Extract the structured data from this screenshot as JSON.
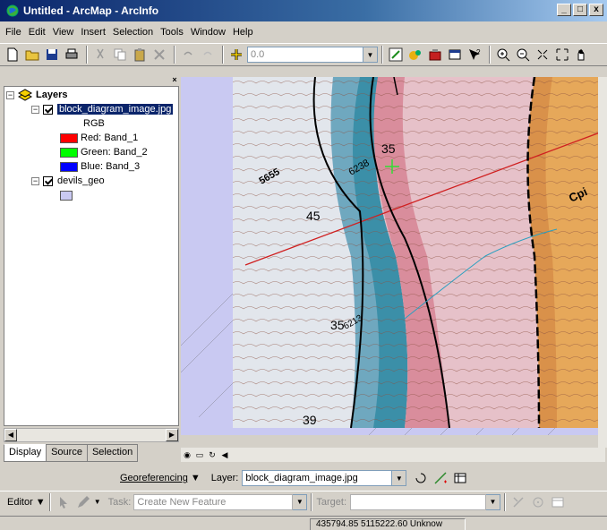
{
  "window": {
    "title": "Untitled - ArcMap - ArcInfo",
    "btn_min": "_",
    "btn_max": "□",
    "btn_close": "x"
  },
  "menu": [
    "File",
    "Edit",
    "View",
    "Insert",
    "Selection",
    "Tools",
    "Window",
    "Help"
  ],
  "toolbar": {
    "scale_value": "0.0"
  },
  "toc": {
    "root_label": "Layers",
    "layers": [
      {
        "name": "block_diagram_image.jpg",
        "sublabel": "RGB",
        "bands": [
          {
            "color": "#ff0000",
            "label": "Red:",
            "band": "Band_1"
          },
          {
            "color": "#00ff00",
            "label": "Green:",
            "band": "Band_2"
          },
          {
            "color": "#0000ff",
            "label": "Blue:",
            "band": "Band_3"
          }
        ]
      },
      {
        "name": "devils_geo",
        "swatch_color": "#c9c9f2"
      }
    ],
    "tabs": [
      "Display",
      "Source",
      "Selection"
    ]
  },
  "map": {
    "labels": [
      "5655",
      "45",
      "35",
      "6213",
      "39",
      "Cpi"
    ],
    "upper_labels": [
      "35",
      "6238"
    ]
  },
  "georef": {
    "menu_label": "Georeferencing",
    "layer_label": "Layer:",
    "layer_value": "block_diagram_image.jpg"
  },
  "editor": {
    "menu_label": "Editor",
    "task_label": "Task:",
    "task_value": "Create New Feature",
    "target_label": "Target:"
  },
  "status": {
    "coords": "435794.85  5115222.60 Unknow"
  },
  "colors": {
    "titlebar": "#0a246a",
    "selected": "#0a246a",
    "map_bg": "#c9c9f2"
  }
}
